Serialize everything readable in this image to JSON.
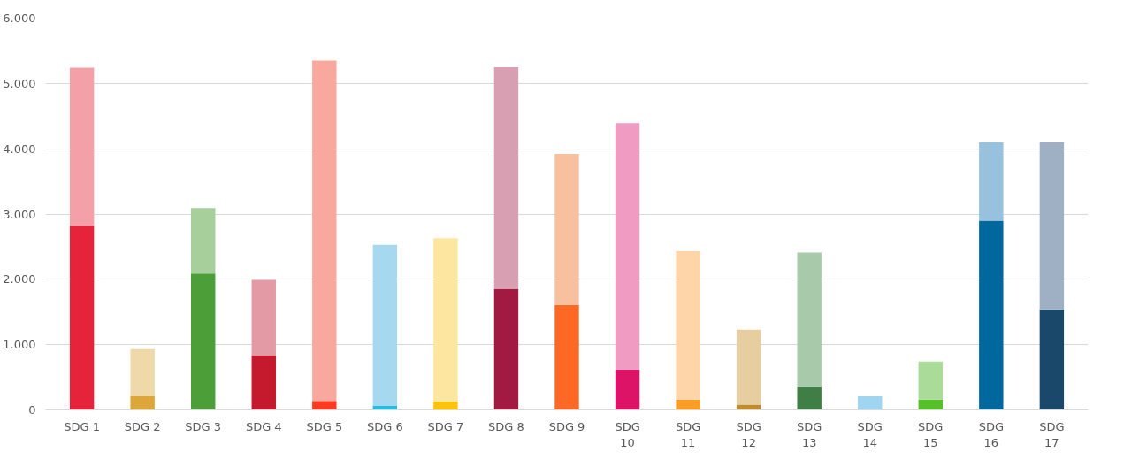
{
  "chart_data": {
    "type": "bar",
    "stacked": true,
    "grid": "y",
    "categories": [
      "SDG 1",
      "SDG 2",
      "SDG 3",
      "SDG 4",
      "SDG 5",
      "SDG 6",
      "SDG 7",
      "SDG 8",
      "SDG 9",
      "SDG 10",
      "SDG 11",
      "SDG 12",
      "SDG 13",
      "SDG 14",
      "SDG 15",
      "SDG 16",
      "SDG 17"
    ],
    "ylim": [
      0,
      6000
    ],
    "yticks": [
      0,
      {
        "value": 1000,
        "label": "1.000"
      },
      {
        "value": 2000,
        "label": "2.000"
      },
      {
        "value": 3000,
        "label": "3.000"
      },
      {
        "value": 4000,
        "label": "4.000"
      },
      {
        "value": 5000,
        "label": "5.000"
      },
      {
        "value": 6000,
        "label": "6.000"
      }
    ],
    "series": [
      {
        "values": [
          2820,
          210,
          2090,
          840,
          140,
          60,
          130,
          1850,
          1610,
          620,
          160,
          80,
          350,
          0,
          160,
          2900,
          1540
        ],
        "colors": [
          "#e5243b",
          "#dda63a",
          "#4c9f38",
          "#c5192d",
          "#ff3a21",
          "#26bde2",
          "#fcc30b",
          "#a21942",
          "#fd6925",
          "#dd1367",
          "#fd9d24",
          "#bf8b2e",
          "#3f7e44",
          "#0a97d9",
          "#56c02b",
          "#00689d",
          "#19486a"
        ]
      },
      {
        "values": [
          2420,
          720,
          1000,
          1150,
          5210,
          2470,
          2500,
          3400,
          2310,
          3770,
          2270,
          1150,
          2060,
          210,
          580,
          1200,
          2560
        ],
        "colors": [
          "#f4a0a8",
          "#f0d9a8",
          "#a7cf9b",
          "#e49aa4",
          "#f8a89c",
          "#a6d9ef",
          "#fde7a0",
          "#d89fb2",
          "#f9c0a0",
          "#f09bc2",
          "#fdd5a8",
          "#e6cea0",
          "#a9c9ab",
          "#9fd5ee",
          "#abdb98",
          "#97c1dd",
          "#9fb0c4"
        ]
      }
    ]
  }
}
